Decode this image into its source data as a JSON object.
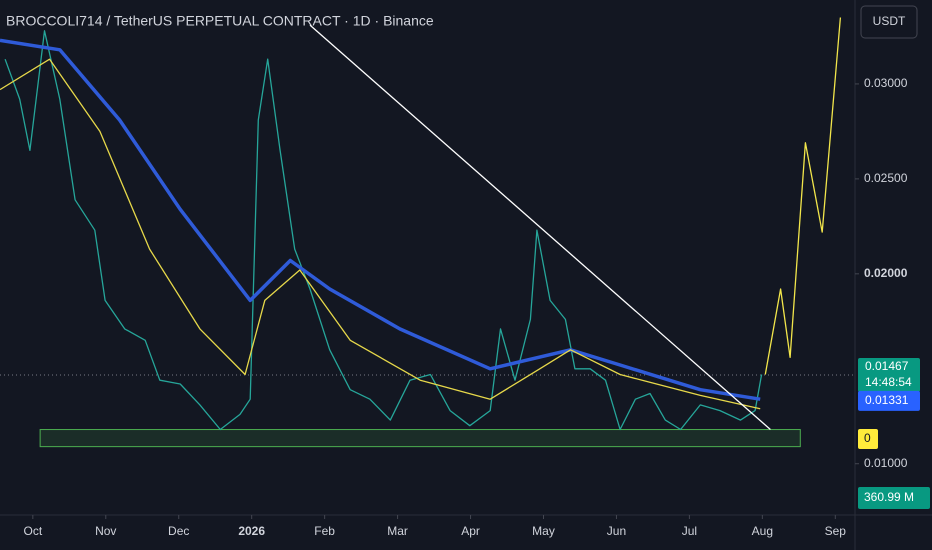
{
  "chart_data": {
    "type": "line",
    "title": "BROCCOLI714 / TetherUS PERPETUAL CONTRACT · 1D · Binance",
    "currency_button": "USDT",
    "xlim": [
      -0.45,
      11.27
    ],
    "ylim": [
      0.0073,
      0.03442
    ],
    "xticks": [
      {
        "value": 0,
        "label": "Oct"
      },
      {
        "value": 1,
        "label": "Nov"
      },
      {
        "value": 2,
        "label": "Dec"
      },
      {
        "value": 3,
        "label": "2026"
      },
      {
        "value": 4,
        "label": "Feb"
      },
      {
        "value": 5,
        "label": "Mar"
      },
      {
        "value": 6,
        "label": "Apr"
      },
      {
        "value": 7,
        "label": "May"
      },
      {
        "value": 8,
        "label": "Jun"
      },
      {
        "value": 9,
        "label": "Jul"
      },
      {
        "value": 10,
        "label": "Aug"
      },
      {
        "value": 11,
        "label": "Sep"
      }
    ],
    "yticks": [
      {
        "value": 0.03,
        "label": "0.03000"
      },
      {
        "value": 0.025,
        "label": "0.02500"
      },
      {
        "value": 0.02,
        "label": "0.02000"
      },
      {
        "value": 0.01,
        "label": "0.01000"
      }
    ],
    "grid": false,
    "series": [
      {
        "color": "#26a69a",
        "x": [
          -0.38,
          -0.18,
          -0.04,
          0.16,
          0.37,
          0.58,
          0.85,
          0.99,
          1.26,
          1.54,
          1.74,
          2.02,
          2.29,
          2.57,
          2.84,
          2.98,
          3.09,
          3.22,
          3.39,
          3.59,
          3.8,
          4.07,
          4.35,
          4.62,
          4.9,
          5.17,
          5.45,
          5.72,
          5.99,
          6.27,
          6.41,
          6.61,
          6.82,
          6.91,
          7.09,
          7.3,
          7.43,
          7.64,
          7.85,
          8.05,
          8.26,
          8.46,
          8.67,
          8.88,
          9.15,
          9.42,
          9.7,
          9.9,
          9.99
        ],
        "values": [
          0.0313,
          0.0292,
          0.0265,
          0.0328,
          0.0292,
          0.0239,
          0.0223,
          0.0186,
          0.0171,
          0.0165,
          0.0144,
          0.0142,
          0.0131,
          0.0118,
          0.0126,
          0.0134,
          0.0281,
          0.0313,
          0.0265,
          0.0213,
          0.0192,
          0.016,
          0.0139,
          0.0134,
          0.0123,
          0.0144,
          0.0147,
          0.0128,
          0.012,
          0.0128,
          0.0171,
          0.0144,
          0.0176,
          0.0223,
          0.0186,
          0.0176,
          0.015,
          0.015,
          0.0144,
          0.0118,
          0.0134,
          0.0137,
          0.0123,
          0.0118,
          0.0131,
          0.0128,
          0.0123,
          0.0128,
          0.0147
        ]
      },
      {
        "color": "#2f5bd8",
        "x": [
          -0.45,
          0.37,
          1.19,
          2.02,
          2.98,
          3.53,
          4.07,
          5.03,
          6.27,
          7.37,
          8.05,
          9.15,
          9.97
        ],
        "values": [
          0.0323,
          0.0318,
          0.0281,
          0.0234,
          0.0186,
          0.0207,
          0.0192,
          0.0171,
          0.015,
          0.016,
          0.0152,
          0.0139,
          0.0134
        ]
      },
      {
        "color": "#e6d84a",
        "x": [
          -0.45,
          0.23,
          0.92,
          1.6,
          2.29,
          2.91,
          3.18,
          3.66,
          4.35,
          5.31,
          6.27,
          6.95,
          7.37,
          8.05,
          9.15,
          9.97
        ],
        "values": [
          0.0297,
          0.0313,
          0.0275,
          0.0213,
          0.0171,
          0.0147,
          0.0186,
          0.0202,
          0.0165,
          0.0144,
          0.0134,
          0.015,
          0.016,
          0.0147,
          0.0136,
          0.0129
        ]
      },
      {
        "color": "#f2e64b",
        "x": [
          10.04,
          10.25,
          10.38,
          10.59,
          10.82,
          11.07
        ],
        "values": [
          0.0147,
          0.0192,
          0.0156,
          0.0269,
          0.0222,
          0.0335
        ]
      },
      {
        "color": "#ffffff",
        "x": [
          3.8,
          10.11
        ],
        "values": [
          0.0331,
          0.0118
        ]
      }
    ],
    "zone": {
      "color": "#4caf50",
      "x": [
        0.1,
        10.52
      ],
      "values": [
        0.0109,
        0.0118
      ]
    },
    "last_price": 0.01467,
    "countdown": "14:48:54",
    "ma_value": 0.01331,
    "indicator_value": 0,
    "volume_label": "360.99 M"
  }
}
